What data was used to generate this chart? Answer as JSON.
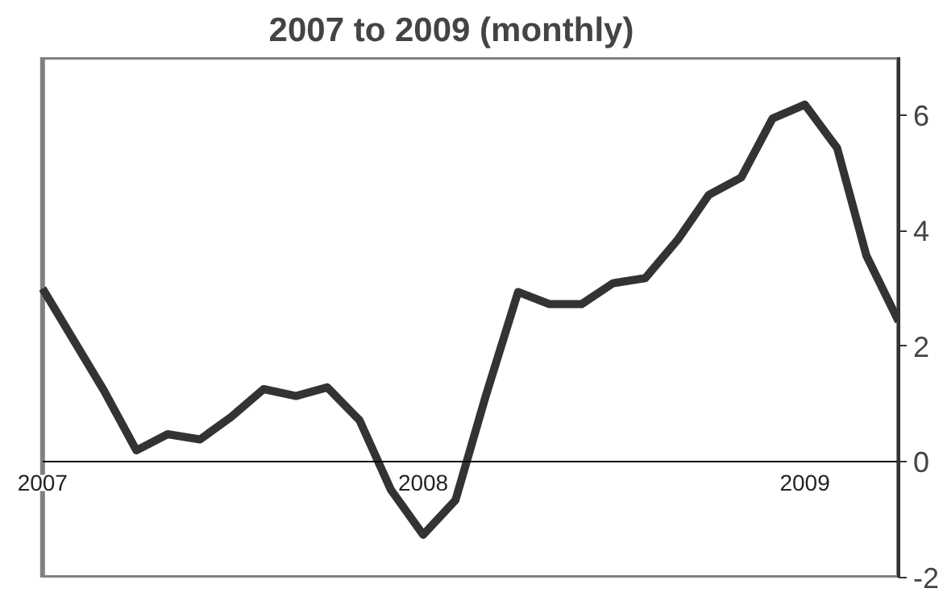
{
  "chart_data": {
    "type": "line",
    "title": "2007 to 2009 (monthly)",
    "x": [
      "2007-01",
      "2007-02",
      "2007-03",
      "2007-04",
      "2007-05",
      "2007-06",
      "2007-07",
      "2007-08",
      "2007-09",
      "2007-10",
      "2007-11",
      "2007-12",
      "2008-01",
      "2008-02",
      "2008-03",
      "2008-04",
      "2008-05",
      "2008-06",
      "2008-07",
      "2008-08",
      "2008-09",
      "2008-10",
      "2008-11",
      "2008-12",
      "2009-01",
      "2009-02",
      "2009-03",
      "2009-04"
    ],
    "series": [
      {
        "color": "#333333",
        "values": [
          3.0,
          2.07,
          1.23,
          0.2,
          0.48,
          0.39,
          0.78,
          1.26,
          1.14,
          1.29,
          0.72,
          -0.48,
          -1.26,
          -0.66,
          1.14,
          2.94,
          2.73,
          2.73,
          3.09,
          3.18,
          3.84,
          4.62,
          4.92,
          5.94,
          6.18,
          5.43,
          3.57,
          2.43
        ]
      }
    ],
    "xlim": [
      "2007-01",
      "2009-04"
    ],
    "xticks": [
      {
        "value": "2007-01",
        "label": "2007"
      },
      {
        "value": "2008-01",
        "label": "2008"
      },
      {
        "value": "2009-01",
        "label": "2009"
      }
    ],
    "ylim": [
      -2,
      7
    ],
    "yticks": [
      -2,
      0,
      2,
      4,
      6
    ],
    "grid": false,
    "line_style": "solid"
  }
}
